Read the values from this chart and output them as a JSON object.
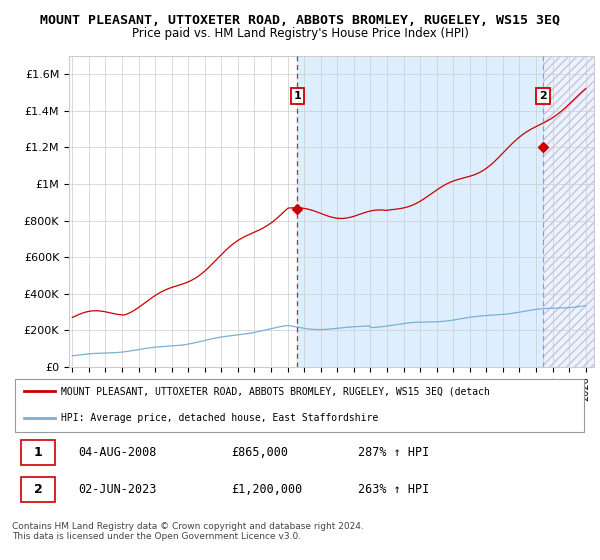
{
  "title": "MOUNT PLEASANT, UTTOXETER ROAD, ABBOTS BROMLEY, RUGELEY, WS15 3EQ",
  "subtitle": "Price paid vs. HM Land Registry's House Price Index (HPI)",
  "title_fontsize": 9.5,
  "subtitle_fontsize": 8.5,
  "ylabel_ticks": [
    "£0",
    "£200K",
    "£400K",
    "£600K",
    "£800K",
    "£1M",
    "£1.2M",
    "£1.4M",
    "£1.6M"
  ],
  "ylabel_values": [
    0,
    200000,
    400000,
    600000,
    800000,
    1000000,
    1200000,
    1400000,
    1600000
  ],
  "ylim": [
    0,
    1700000
  ],
  "xlim_start": 1994.8,
  "xlim_end": 2026.5,
  "xtick_years": [
    1995,
    1996,
    1997,
    1998,
    1999,
    2000,
    2001,
    2002,
    2003,
    2004,
    2005,
    2006,
    2007,
    2008,
    2009,
    2010,
    2011,
    2012,
    2013,
    2014,
    2015,
    2016,
    2017,
    2018,
    2019,
    2020,
    2021,
    2022,
    2023,
    2024,
    2025,
    2026
  ],
  "red_line_color": "#cc0000",
  "blue_line_color": "#7bafd4",
  "grid_color": "#cccccc",
  "background_color": "#ffffff",
  "shade_between_color": "#ddeeff",
  "hatch_color": "#aaaacc",
  "sale1_x": 2008.58,
  "sale1_y": 865000,
  "sale1_label": "1",
  "sale2_x": 2023.42,
  "sale2_y": 1200000,
  "sale2_label": "2",
  "vline1_x": 2008.58,
  "vline2_x": 2023.42,
  "legend_red_label": "MOUNT PLEASANT, UTTOXETER ROAD, ABBOTS BROMLEY, RUGELEY, WS15 3EQ (detach",
  "legend_blue_label": "HPI: Average price, detached house, East Staffordshire",
  "table_data": [
    {
      "num": "1",
      "date": "04-AUG-2008",
      "price": "£865,000",
      "hpi": "287% ↑ HPI"
    },
    {
      "num": "2",
      "date": "02-JUN-2023",
      "price": "£1,200,000",
      "hpi": "263% ↑ HPI"
    }
  ],
  "footer": "Contains HM Land Registry data © Crown copyright and database right 2024.\nThis data is licensed under the Open Government Licence v3.0."
}
